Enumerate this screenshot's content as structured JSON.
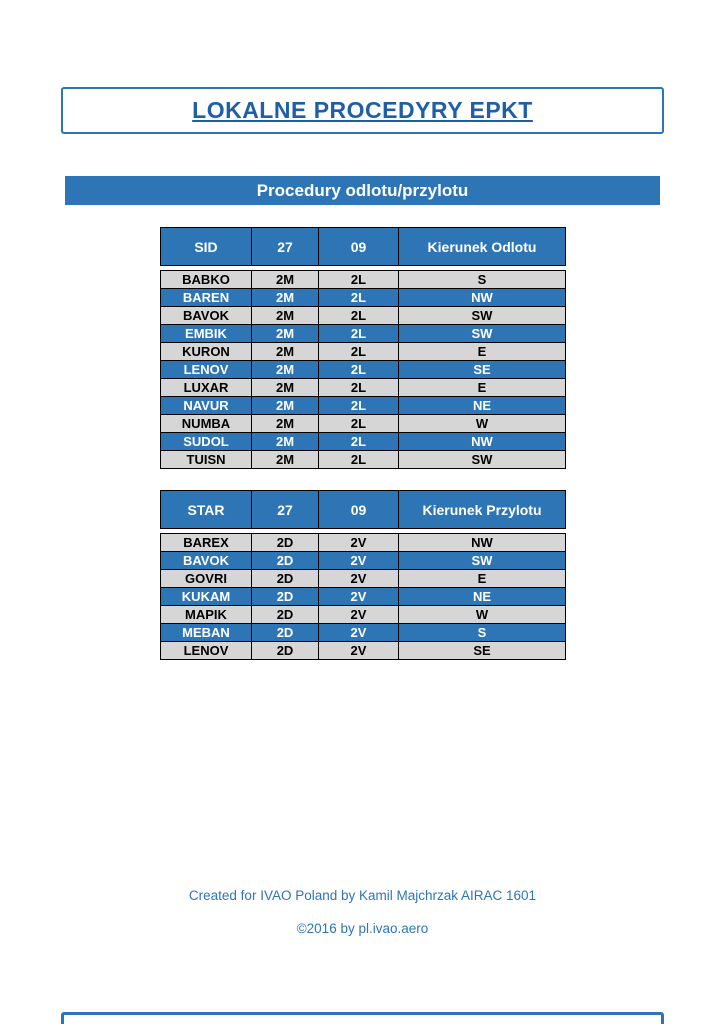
{
  "page": {
    "title": "LOKALNE PROCEDYRY EPKT",
    "section_header": "Procedury odlotu/przylotu",
    "footer_credit": "Created for IVAO Poland by Kamil Majchrzak AIRAC 1601",
    "footer_copyright": "©2016 by pl.ivao.aero"
  },
  "colors": {
    "accent_blue": "#2E75B6",
    "title_text_blue": "#1F5FA8",
    "row_gray": "#D6D6D6",
    "table_border": "#000000"
  },
  "sid_table": {
    "headers": [
      "SID",
      "27",
      "09",
      "Kierunek Odlotu"
    ],
    "rows": [
      {
        "cells": [
          "BABKO",
          "2M",
          "2L",
          "S"
        ],
        "highlight": false
      },
      {
        "cells": [
          "BAREN",
          "2M",
          "2L",
          "NW"
        ],
        "highlight": true
      },
      {
        "cells": [
          "BAVOK",
          "2M",
          "2L",
          "SW"
        ],
        "highlight": false
      },
      {
        "cells": [
          "EMBIK",
          "2M",
          "2L",
          "SW"
        ],
        "highlight": true
      },
      {
        "cells": [
          "KURON",
          "2M",
          "2L",
          "E"
        ],
        "highlight": false
      },
      {
        "cells": [
          "LENOV",
          "2M",
          "2L",
          "SE"
        ],
        "highlight": true
      },
      {
        "cells": [
          "LUXAR",
          "2M",
          "2L",
          "E"
        ],
        "highlight": false
      },
      {
        "cells": [
          "NAVUR",
          "2M",
          "2L",
          "NE"
        ],
        "highlight": true
      },
      {
        "cells": [
          "NUMBA",
          "2M",
          "2L",
          "W"
        ],
        "highlight": false
      },
      {
        "cells": [
          "SUDOL",
          "2M",
          "2L",
          "NW"
        ],
        "highlight": true
      },
      {
        "cells": [
          "TUISN",
          "2M",
          "2L",
          "SW"
        ],
        "highlight": false
      }
    ]
  },
  "star_table": {
    "headers": [
      "STAR",
      "27",
      "09",
      "Kierunek Przylotu"
    ],
    "rows": [
      {
        "cells": [
          "BAREX",
          "2D",
          "2V",
          "NW"
        ],
        "highlight": false
      },
      {
        "cells": [
          "BAVOK",
          "2D",
          "2V",
          "SW"
        ],
        "highlight": true
      },
      {
        "cells": [
          "GOVRI",
          "2D",
          "2V",
          "E"
        ],
        "highlight": false
      },
      {
        "cells": [
          "KUKAM",
          "2D",
          "2V",
          "NE"
        ],
        "highlight": true
      },
      {
        "cells": [
          "MAPIK",
          "2D",
          "2V",
          "W"
        ],
        "highlight": false
      },
      {
        "cells": [
          "MEBAN",
          "2D",
          "2V",
          "S"
        ],
        "highlight": true
      },
      {
        "cells": [
          "LENOV",
          "2D",
          "2V",
          "SE"
        ],
        "highlight": false
      }
    ]
  }
}
